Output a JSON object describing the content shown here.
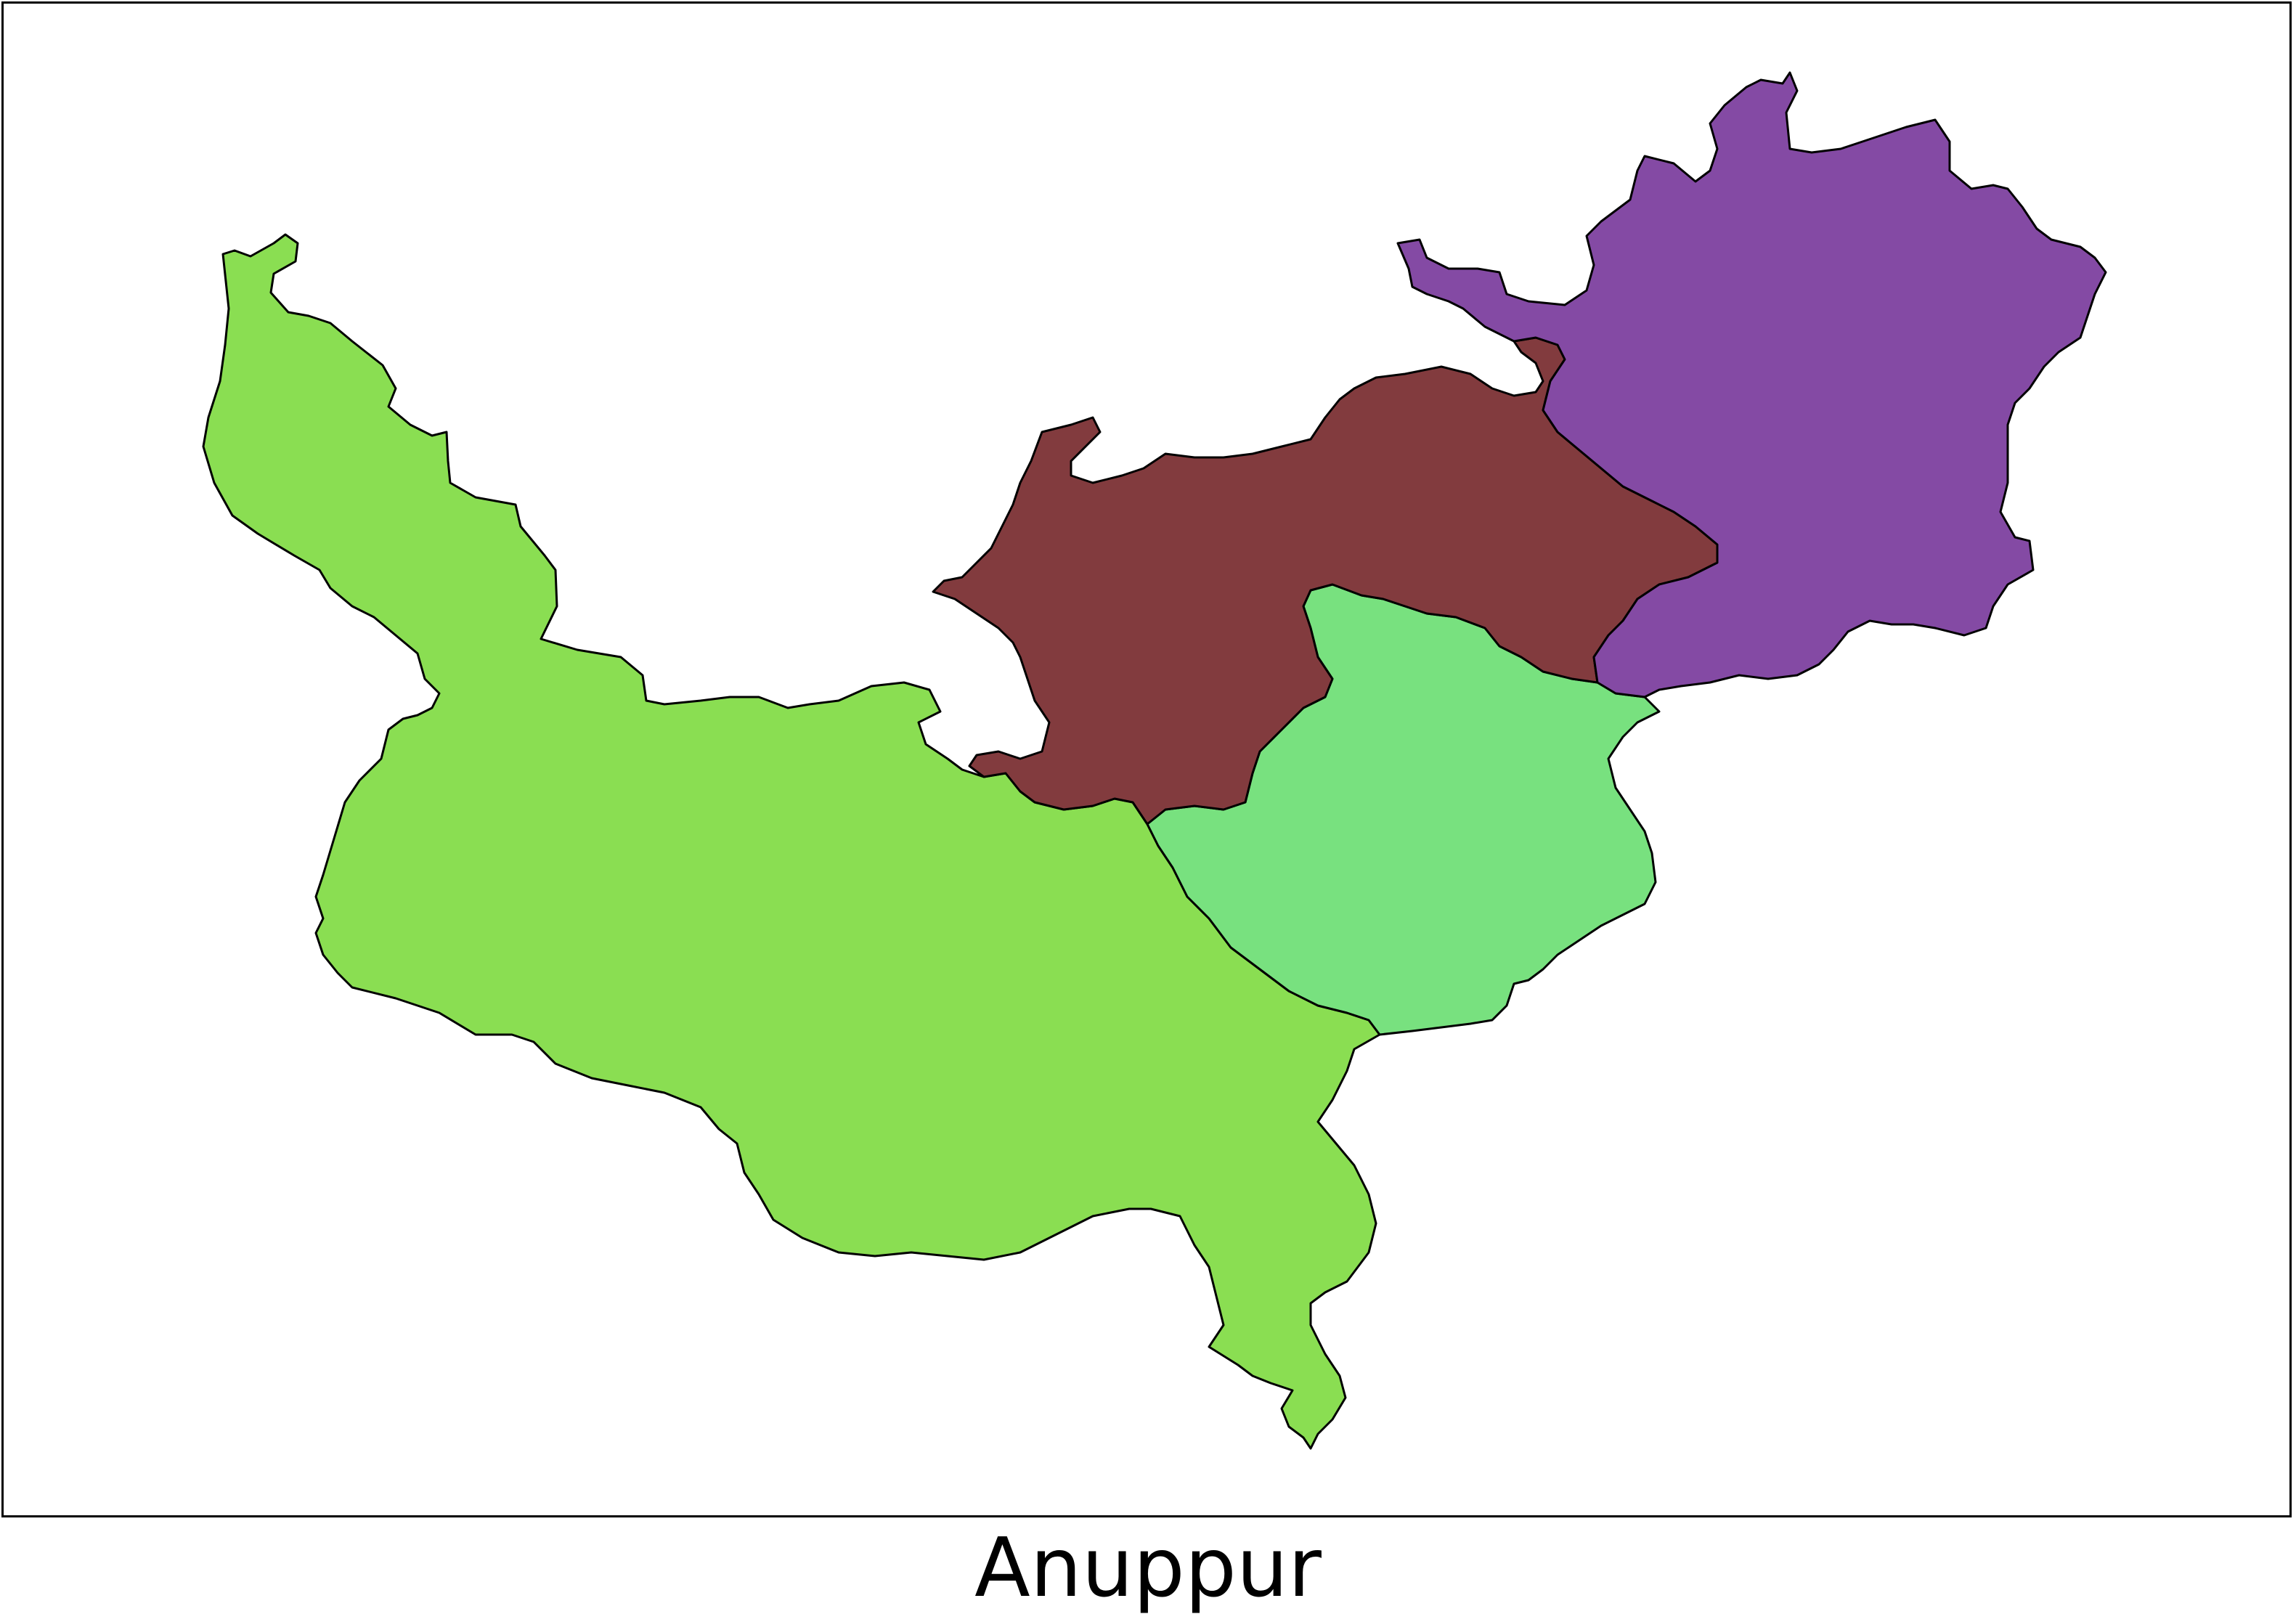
{
  "map": {
    "title": "Anuppur",
    "colors": {
      "frame": "#000000",
      "background": "#ffffff",
      "southwest_region": "#8ade52",
      "central_south_region": "#78e17f",
      "central_north_region": "#823b3e",
      "northeast_region": "#844aa4",
      "boundary": "#000000"
    }
  }
}
